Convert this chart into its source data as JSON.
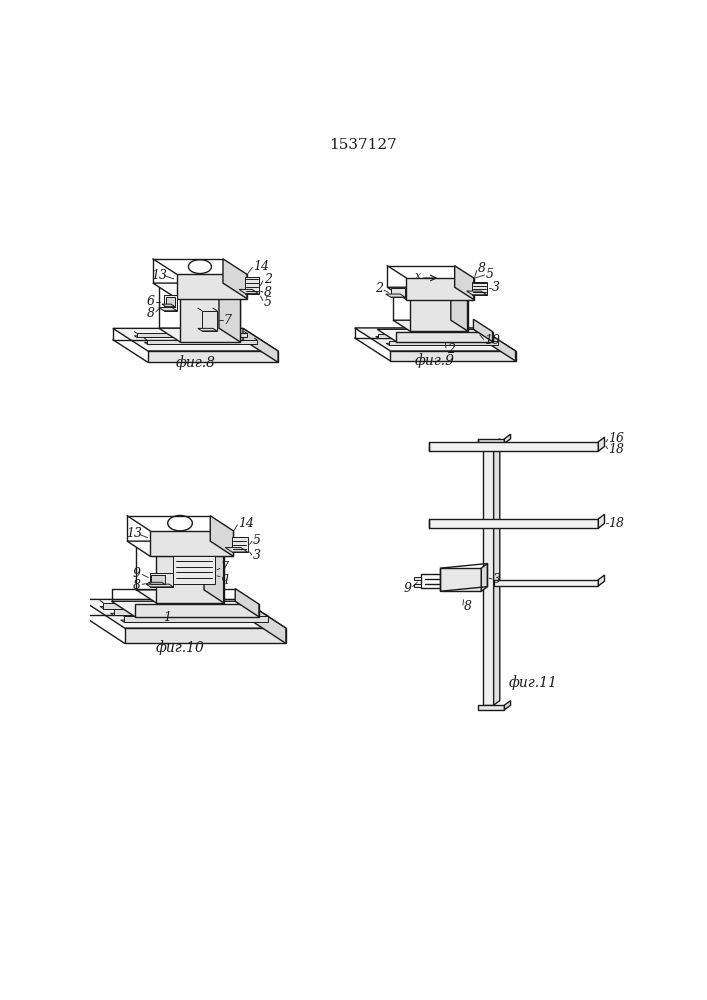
{
  "title": "1537127",
  "title_fontsize": 11,
  "background_color": "#ffffff",
  "line_color": "#1a1a1a",
  "line_width": 1.0,
  "fig8_label": "фиг.8",
  "fig9_label": "фиг.9",
  "fig10_label": "фиг.10",
  "fig11_label": "фиг.11",
  "label_fontsize": 10,
  "number_fontsize": 9
}
